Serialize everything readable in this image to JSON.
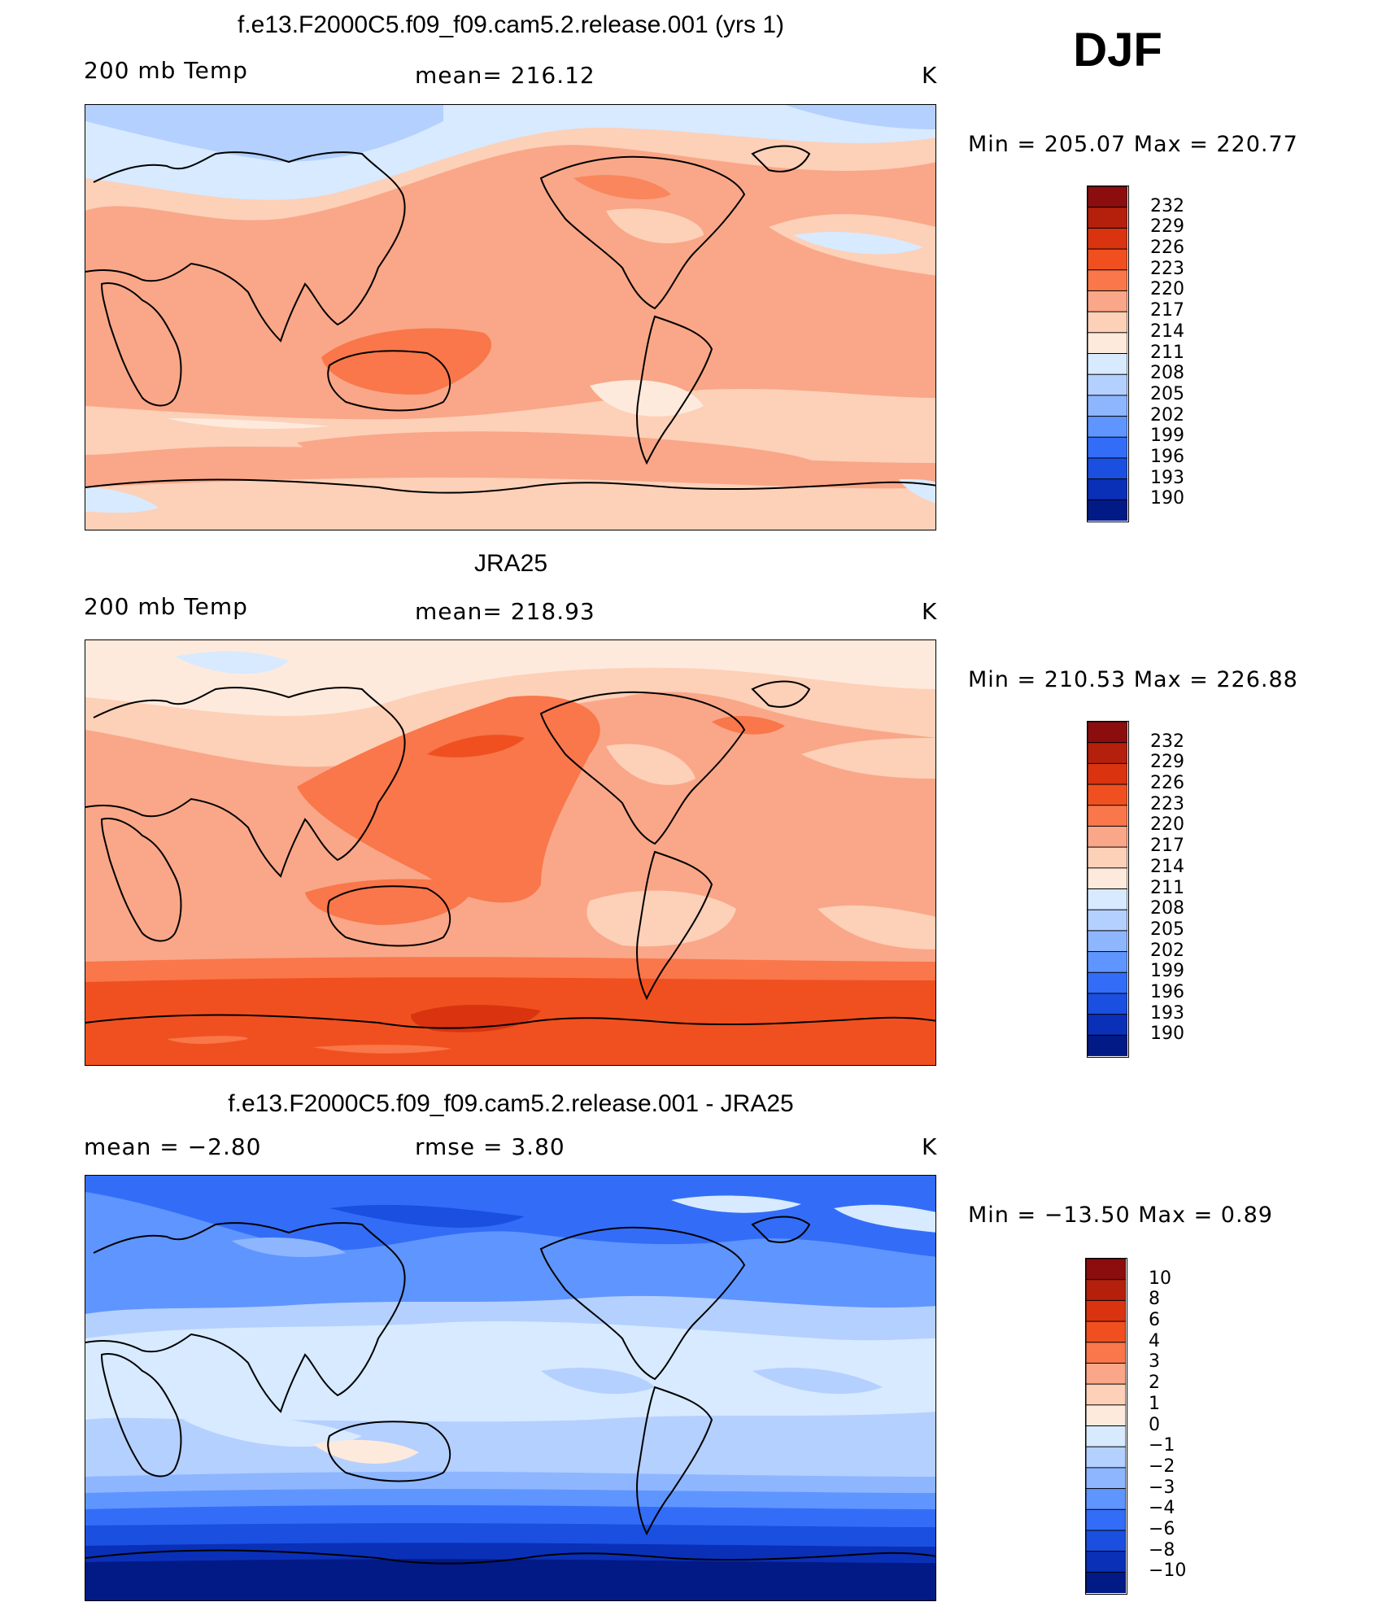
{
  "season": "DJF",
  "units_label": "K",
  "panels": [
    {
      "title": "f.e13.F2000C5.f09_f09.cam5.2.release.001 (yrs 1)",
      "left_label": "200 mb Temp",
      "center_label": "mean= 216.12",
      "right_label": "K",
      "minmax": "Min = 205.07 Max = 220.77"
    },
    {
      "title": "JRA25",
      "left_label": "200 mb Temp",
      "center_label": "mean= 218.93",
      "right_label": "K",
      "minmax": "Min = 210.53 Max = 226.88"
    },
    {
      "title": "f.e13.F2000C5.f09_f09.cam5.2.release.001 - JRA25",
      "left_label": "mean =   −2.80",
      "center_label": "rmse =    3.80",
      "right_label": "K",
      "minmax": "Min = −13.50 Max =    0.89"
    }
  ],
  "colorbars": [
    {
      "labels": [
        "232",
        "229",
        "226",
        "223",
        "220",
        "217",
        "214",
        "211",
        "208",
        "205",
        "202",
        "199",
        "196",
        "193",
        "190"
      ],
      "colors": [
        "#8b0d0d",
        "#b5200c",
        "#d9330f",
        "#f0501f",
        "#f9774a",
        "#f9a788",
        "#fdd0b8",
        "#feeadc",
        "#d7eaff",
        "#b4d0ff",
        "#8eb6ff",
        "#5f95ff",
        "#336df7",
        "#1a4fe0",
        "#0a30b8",
        "#021a86"
      ]
    },
    {
      "labels": [
        "232",
        "229",
        "226",
        "223",
        "220",
        "217",
        "214",
        "211",
        "208",
        "205",
        "202",
        "199",
        "196",
        "193",
        "190"
      ],
      "colors": [
        "#8b0d0d",
        "#b5200c",
        "#d9330f",
        "#f0501f",
        "#f9774a",
        "#f9a788",
        "#fdd0b8",
        "#feeadc",
        "#d7eaff",
        "#b4d0ff",
        "#8eb6ff",
        "#5f95ff",
        "#336df7",
        "#1a4fe0",
        "#0a30b8",
        "#021a86"
      ]
    },
    {
      "labels": [
        "10",
        "8",
        "6",
        "4",
        "3",
        "2",
        "1",
        "0",
        "−1",
        "−2",
        "−3",
        "−4",
        "−6",
        "−8",
        "−10"
      ],
      "colors": [
        "#8b0d0d",
        "#b5200c",
        "#d9330f",
        "#f0501f",
        "#f9774a",
        "#f9a788",
        "#fdd0b8",
        "#feeadc",
        "#d7eaff",
        "#b4d0ff",
        "#8eb6ff",
        "#5f95ff",
        "#336df7",
        "#1a4fe0",
        "#0a30b8",
        "#021a86"
      ]
    }
  ]
}
